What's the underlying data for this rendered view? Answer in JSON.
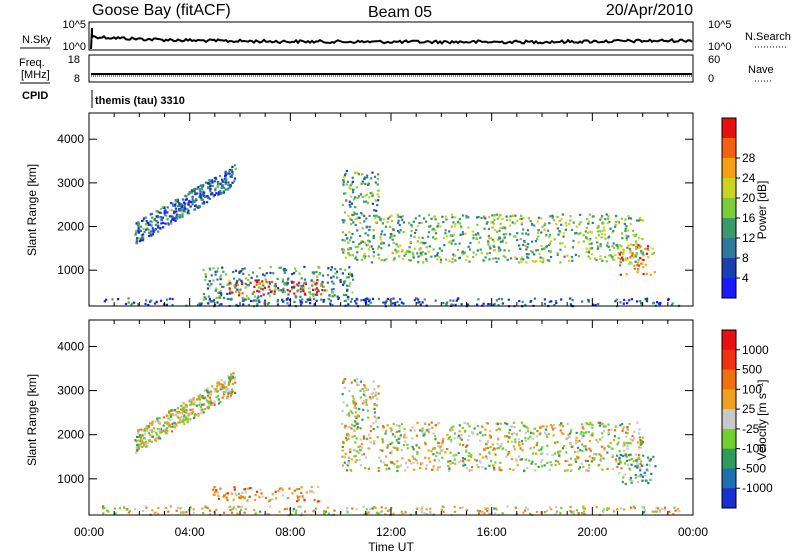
{
  "header": {
    "station": "Goose Bay (fitACF)",
    "beam": "Beam 05",
    "date": "20/Apr/2010"
  },
  "panels": {
    "nsky_label": "N.Sky",
    "nsky_ticks": [
      "10^5",
      "10^0"
    ],
    "nsearch_label": "N.Search",
    "nsearch_ticks": [
      "10^5",
      "10^0"
    ],
    "freq_label": "Freq.",
    "freq_unit": "[MHz]",
    "freq_ticks": [
      "18",
      "8"
    ],
    "nave_label": "Nave",
    "nave_ticks": [
      "60",
      "0"
    ],
    "cpid_label": "CPID",
    "cpid_text": "themis (tau) 3310"
  },
  "chart_data": [
    {
      "type": "heatmap",
      "name_key": "power",
      "ylabel": "Slant Range [km]",
      "xlabel": "",
      "ylim": [
        180,
        4600
      ],
      "yticks": [
        1000,
        2000,
        3000,
        4000
      ],
      "xlim_hours": [
        0,
        24
      ],
      "xticks": [
        "00:00",
        "04:00",
        "08:00",
        "12:00",
        "16:00",
        "20:00",
        "00:00"
      ],
      "colorbar": {
        "label": "Power [dB]",
        "ticks": [
          "4",
          "8",
          "12",
          "16",
          "20",
          "24",
          "28"
        ],
        "colors": [
          "#1a1aff",
          "#1a3fb0",
          "#2f7a9a",
          "#3a9a6a",
          "#7dcc3a",
          "#c8d420",
          "#f5a010",
          "#f56010",
          "#e81010"
        ]
      },
      "regions": [
        {
          "t0": 1.8,
          "t1": 5.8,
          "r0": 1700,
          "r1": 3300,
          "level": 0.25,
          "kind": "diag"
        },
        {
          "t0": 5.5,
          "t1": 9.4,
          "r0": 450,
          "r1": 800,
          "level": 0.95
        },
        {
          "t0": 4.5,
          "t1": 10.5,
          "r0": 300,
          "r1": 1100,
          "level": 0.35
        },
        {
          "t0": 10.0,
          "t1": 22.0,
          "r0": 1200,
          "r1": 2300,
          "level": 0.45
        },
        {
          "t0": 10.0,
          "t1": 11.5,
          "r0": 2200,
          "r1": 3300,
          "level": 0.4
        },
        {
          "t0": 21.0,
          "t1": 22.5,
          "r0": 900,
          "r1": 1600,
          "level": 0.75
        },
        {
          "t0": 0.5,
          "t1": 23.5,
          "r0": 200,
          "r1": 380,
          "level": 0.2
        }
      ]
    },
    {
      "type": "heatmap",
      "name_key": "velocity",
      "ylabel": "Slant Range [km]",
      "xlabel": "Time UT",
      "ylim": [
        180,
        4600
      ],
      "yticks": [
        1000,
        2000,
        3000,
        4000
      ],
      "xlim_hours": [
        0,
        24
      ],
      "xticks": [
        "00:00",
        "04:00",
        "08:00",
        "12:00",
        "16:00",
        "20:00",
        "00:00"
      ],
      "colorbar": {
        "label": "Velocity [m s⁻¹]",
        "ticks": [
          "1000",
          "500",
          "100",
          "25",
          "-25",
          "-100",
          "-500",
          "-1000"
        ],
        "colors": [
          "#1a2fd0",
          "#1f6fb0",
          "#2f9a5a",
          "#6fd030",
          "#c8c8c8",
          "#f0a020",
          "#f07010",
          "#f03010",
          "#e81010"
        ]
      },
      "regions": [
        {
          "t0": 1.8,
          "t1": 5.8,
          "r0": 1700,
          "r1": 3300,
          "level": 0.5,
          "kind": "diag"
        },
        {
          "t0": 4.8,
          "t1": 9.2,
          "r0": 500,
          "r1": 850,
          "level": 0.65
        },
        {
          "t0": 10.0,
          "t1": 22.0,
          "r0": 1200,
          "r1": 2300,
          "level": 0.5
        },
        {
          "t0": 10.0,
          "t1": 11.5,
          "r0": 2200,
          "r1": 3300,
          "level": 0.5
        },
        {
          "t0": 21.0,
          "t1": 22.5,
          "r0": 900,
          "r1": 1600,
          "level": 0.3
        },
        {
          "t0": 0.5,
          "t1": 23.5,
          "r0": 200,
          "r1": 400,
          "level": 0.55
        }
      ]
    }
  ]
}
